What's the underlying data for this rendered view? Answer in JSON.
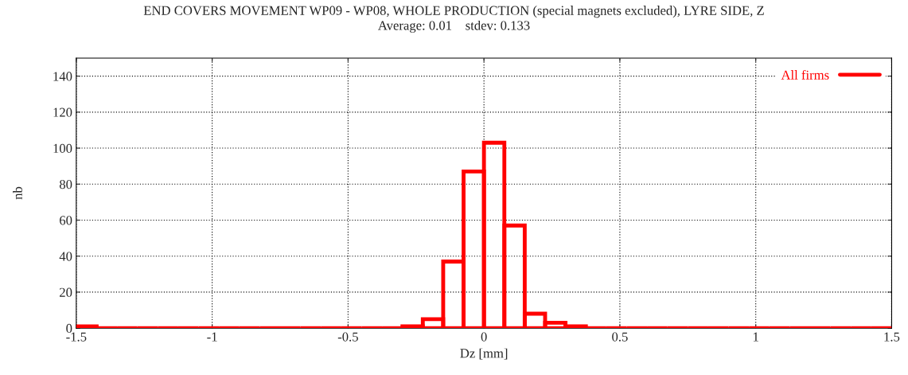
{
  "chart_data": {
    "type": "histogram",
    "title": "END COVERS MOVEMENT WP09 - WP08, WHOLE PRODUCTION (special magnets excluded), LYRE SIDE, Z",
    "subtitle": "Average: 0.01    stdev: 0.133",
    "xlabel": "Dz [mm]",
    "ylabel": "nb",
    "bins": [
      -1.5,
      -1.425,
      -1.35,
      -1.275,
      -1.2,
      -1.125,
      -1.05,
      -0.975,
      -0.9,
      -0.825,
      -0.75,
      -0.675,
      -0.6,
      -0.525,
      -0.45,
      -0.375,
      -0.3,
      -0.225,
      -0.15,
      -0.075,
      0,
      0.075,
      0.15,
      0.225,
      0.3,
      0.375,
      0.45,
      0.525,
      0.6,
      0.675,
      0.75,
      0.825,
      0.9,
      0.975,
      1.05,
      1.125,
      1.2,
      1.275,
      1.35,
      1.425,
      1.5
    ],
    "series": [
      {
        "name": "All firms",
        "color": "#ff0000",
        "values": [
          1,
          0,
          0,
          0,
          0,
          0,
          0,
          0,
          0,
          0,
          0,
          0,
          0,
          0,
          0,
          0,
          1,
          5,
          37,
          87,
          103,
          57,
          8,
          3,
          1,
          0,
          0,
          0,
          0,
          0,
          0,
          0,
          0,
          0,
          0,
          0,
          0,
          0,
          0,
          0
        ]
      }
    ],
    "xlim": [
      -1.5,
      1.5
    ],
    "xticks": [
      -1.5,
      -1,
      -0.5,
      0,
      0.5,
      1,
      1.5
    ],
    "ylim": [
      0,
      150
    ],
    "yticks": [
      0,
      20,
      40,
      60,
      80,
      100,
      120,
      140
    ],
    "grid": true,
    "legend": "top right"
  }
}
